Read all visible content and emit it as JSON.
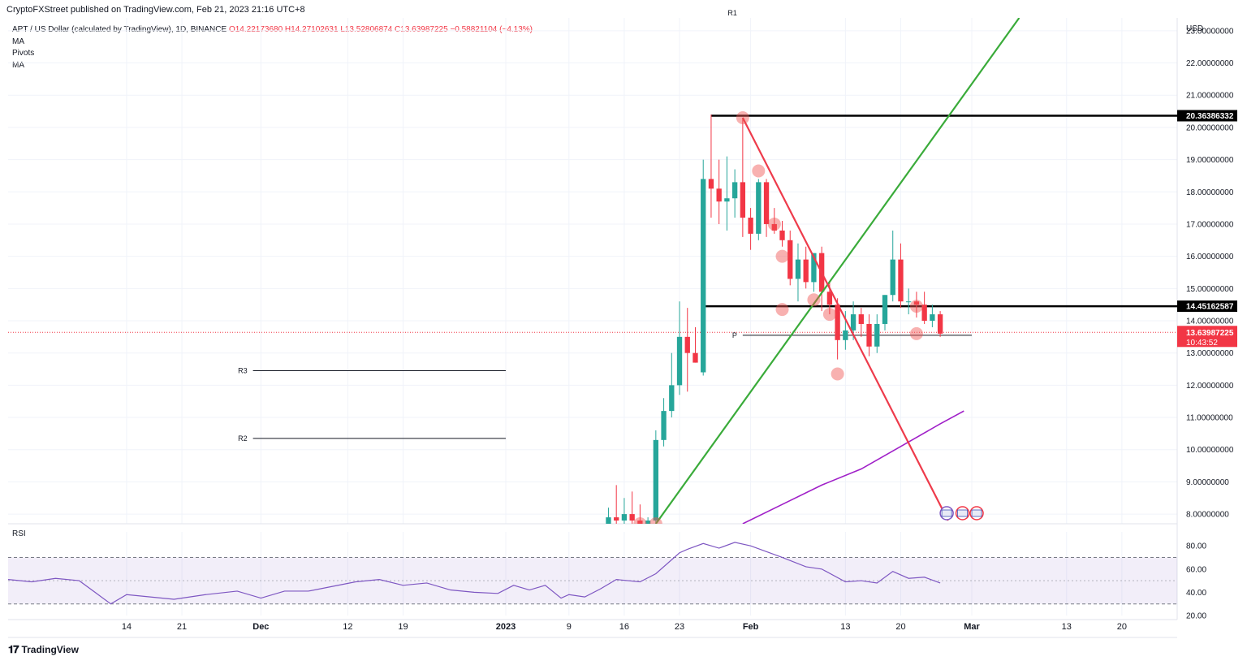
{
  "header": {
    "published": "CryptoFXStreet published on TradingView.com, Feb 21, 2023 21:16 UTC+8"
  },
  "legend": {
    "symbol": "APT / US Dollar (calculated by TradingView), 1D, BINANCE",
    "ohlc": "O14.22173680  H14.27102631  L13.52806874  C13.63987225  −0.58821104 (−4.13%)",
    "indicators": [
      "MA",
      "Pivots",
      "MA"
    ]
  },
  "footer": {
    "brand": "TradingView",
    "logo": "tradingview-logo-icon"
  },
  "colors": {
    "up": "#26a69a",
    "down": "#f23645",
    "trend_up": "#3aab3a",
    "trend_down": "#ee3b4b",
    "ma": "#a020c8",
    "rsi": "#7e57c2"
  },
  "chart_data": [
    {
      "type": "candlestick",
      "price_axis_title": "USD",
      "y_ticks": [
        8,
        9,
        10,
        11,
        12,
        13,
        14,
        15,
        16,
        17,
        18,
        19,
        20,
        21,
        22,
        23
      ],
      "y_tick_labels": [
        "8.00000000",
        "9.00000000",
        "10.00000000",
        "11.00000000",
        "12.00000000",
        "13.00000000",
        "14.00000000",
        "15.00000000",
        "16.00000000",
        "17.00000000",
        "18.00000000",
        "19.00000000",
        "20.00000000",
        "21.00000000",
        "22.00000000",
        "23.00000000"
      ],
      "ylim": [
        7.7,
        23.4
      ],
      "xlim": [
        "2022-10-30",
        "2023-03-27"
      ],
      "x_ticks": [
        "2022-11-14",
        "2022-11-21",
        "2022-12-01",
        "2022-12-12",
        "2022-12-19",
        "2023-01-01",
        "2023-01-09",
        "2023-01-16",
        "2023-01-23",
        "2023-02-01",
        "2023-02-13",
        "2023-02-20",
        "2023-03-01",
        "2023-03-13",
        "2023-03-20"
      ],
      "x_tick_labels": [
        "14",
        "21",
        "Dec",
        "12",
        "19",
        "2023",
        "9",
        "16",
        "23",
        "Feb",
        "13",
        "20",
        "Mar",
        "13",
        "20"
      ],
      "candles": [
        {
          "t": "2023-01-14",
          "o": 7.6,
          "h": 8.2,
          "l": 7.5,
          "c": 7.9
        },
        {
          "t": "2023-01-15",
          "o": 7.9,
          "h": 8.9,
          "l": 7.7,
          "c": 7.8
        },
        {
          "t": "2023-01-16",
          "o": 7.8,
          "h": 8.5,
          "l": 7.7,
          "c": 8.0
        },
        {
          "t": "2023-01-17",
          "o": 8.0,
          "h": 8.7,
          "l": 7.6,
          "c": 7.8
        },
        {
          "t": "2023-01-18",
          "o": 7.8,
          "h": 8.3,
          "l": 7.6,
          "c": 7.7
        },
        {
          "t": "2023-01-19",
          "o": 7.7,
          "h": 7.9,
          "l": 7.6,
          "c": 7.8
        },
        {
          "t": "2023-01-20",
          "o": 7.8,
          "h": 10.6,
          "l": 7.7,
          "c": 10.3
        },
        {
          "t": "2023-01-21",
          "o": 10.3,
          "h": 11.6,
          "l": 10.1,
          "c": 11.2
        },
        {
          "t": "2023-01-22",
          "o": 11.2,
          "h": 13.0,
          "l": 11.0,
          "c": 12.0
        },
        {
          "t": "2023-01-23",
          "o": 12.0,
          "h": 14.6,
          "l": 11.7,
          "c": 13.5
        },
        {
          "t": "2023-01-24",
          "o": 13.5,
          "h": 14.4,
          "l": 11.8,
          "c": 13.0
        },
        {
          "t": "2023-01-25",
          "o": 13.0,
          "h": 13.8,
          "l": 12.7,
          "c": 12.7
        },
        {
          "t": "2023-01-26",
          "o": 12.4,
          "h": 19.0,
          "l": 12.3,
          "c": 18.4
        },
        {
          "t": "2023-01-27",
          "o": 18.4,
          "h": 20.4,
          "l": 17.2,
          "c": 18.1
        },
        {
          "t": "2023-01-28",
          "o": 18.1,
          "h": 19.0,
          "l": 17.0,
          "c": 17.7
        },
        {
          "t": "2023-01-29",
          "o": 17.7,
          "h": 19.1,
          "l": 16.8,
          "c": 17.8
        },
        {
          "t": "2023-01-30",
          "o": 17.8,
          "h": 18.7,
          "l": 17.2,
          "c": 18.3
        },
        {
          "t": "2023-01-31",
          "o": 18.3,
          "h": 20.3,
          "l": 16.6,
          "c": 17.2
        },
        {
          "t": "2023-02-01",
          "o": 17.2,
          "h": 17.5,
          "l": 16.2,
          "c": 16.7
        },
        {
          "t": "2023-02-02",
          "o": 16.7,
          "h": 18.4,
          "l": 16.5,
          "c": 18.3
        },
        {
          "t": "2023-02-03",
          "o": 18.3,
          "h": 18.4,
          "l": 16.6,
          "c": 17.0
        },
        {
          "t": "2023-02-04",
          "o": 17.0,
          "h": 17.5,
          "l": 16.7,
          "c": 16.8
        },
        {
          "t": "2023-02-05",
          "o": 16.8,
          "h": 17.1,
          "l": 16.3,
          "c": 16.5
        },
        {
          "t": "2023-02-06",
          "o": 16.5,
          "h": 16.8,
          "l": 15.1,
          "c": 15.3
        },
        {
          "t": "2023-02-07",
          "o": 15.3,
          "h": 16.4,
          "l": 14.6,
          "c": 15.9
        },
        {
          "t": "2023-02-08",
          "o": 15.9,
          "h": 16.3,
          "l": 15.0,
          "c": 15.2
        },
        {
          "t": "2023-02-09",
          "o": 15.2,
          "h": 16.1,
          "l": 14.9,
          "c": 16.1
        },
        {
          "t": "2023-02-10",
          "o": 16.1,
          "h": 16.3,
          "l": 14.3,
          "c": 14.9
        },
        {
          "t": "2023-02-11",
          "o": 14.9,
          "h": 15.2,
          "l": 14.2,
          "c": 14.5
        },
        {
          "t": "2023-02-12",
          "o": 14.5,
          "h": 14.7,
          "l": 12.8,
          "c": 13.4
        },
        {
          "t": "2023-02-13",
          "o": 13.4,
          "h": 14.3,
          "l": 13.1,
          "c": 13.7
        },
        {
          "t": "2023-02-14",
          "o": 13.7,
          "h": 14.6,
          "l": 13.4,
          "c": 14.2
        },
        {
          "t": "2023-02-15",
          "o": 14.2,
          "h": 14.4,
          "l": 13.5,
          "c": 13.9
        },
        {
          "t": "2023-02-16",
          "o": 13.9,
          "h": 14.2,
          "l": 12.9,
          "c": 13.2
        },
        {
          "t": "2023-02-17",
          "o": 13.2,
          "h": 14.2,
          "l": 13.0,
          "c": 13.9
        },
        {
          "t": "2023-02-18",
          "o": 13.9,
          "h": 14.8,
          "l": 13.7,
          "c": 14.8
        },
        {
          "t": "2023-02-19",
          "o": 14.8,
          "h": 16.8,
          "l": 14.6,
          "c": 15.9
        },
        {
          "t": "2023-02-20",
          "o": 15.9,
          "h": 16.4,
          "l": 14.4,
          "c": 14.6
        },
        {
          "t": "2023-02-21",
          "o": 14.6,
          "h": 15.0,
          "l": 14.2,
          "c": 14.6
        },
        {
          "t": "2023-02-22",
          "o": 14.6,
          "h": 14.9,
          "l": 14.1,
          "c": 14.5
        },
        {
          "t": "2023-02-23",
          "o": 14.5,
          "h": 14.9,
          "l": 13.9,
          "c": 14.0
        },
        {
          "t": "2023-02-24",
          "o": 14.0,
          "h": 14.5,
          "l": 13.8,
          "c": 14.2
        },
        {
          "t": "2023-02-25",
          "o": 14.2,
          "h": 14.3,
          "l": 13.5,
          "c": 13.6
        }
      ],
      "horizontal_levels": [
        {
          "label": "20.36386332",
          "value": 20.36386332
        },
        {
          "label": "14.45162587",
          "value": 14.45162587
        }
      ],
      "current_price": {
        "label": "13.63987225",
        "value": 13.63987225,
        "countdown": "10:43:52"
      },
      "pivots": [
        {
          "label": "R1",
          "value": 23.55,
          "from": "2023-01-31",
          "to": "2023-03-01"
        },
        {
          "label": "R3",
          "value": 12.45,
          "from": "2022-11-30",
          "to": "2023-01-01"
        },
        {
          "label": "R2",
          "value": 10.35,
          "from": "2022-11-30",
          "to": "2023-01-01"
        },
        {
          "label": "P",
          "value": 13.55,
          "from": "2023-01-31",
          "to": "2023-03-01"
        }
      ],
      "trend_up": [
        {
          "t": "2023-01-20",
          "v": 7.7
        },
        {
          "t": "2023-03-07",
          "v": 23.4
        }
      ],
      "trend_down": [
        {
          "t": "2023-01-31",
          "v": 20.3
        },
        {
          "t": "2023-02-26",
          "v": 7.8
        }
      ],
      "moving_average": [
        {
          "t": "2023-01-31",
          "v": 7.7
        },
        {
          "t": "2023-02-05",
          "v": 8.3
        },
        {
          "t": "2023-02-10",
          "v": 8.9
        },
        {
          "t": "2023-02-15",
          "v": 9.4
        },
        {
          "t": "2023-02-20",
          "v": 10.1
        },
        {
          "t": "2023-02-25",
          "v": 10.8
        },
        {
          "t": "2023-02-28",
          "v": 11.2
        }
      ],
      "markers": [
        {
          "t": "2023-01-31",
          "v": 20.3
        },
        {
          "t": "2023-02-02",
          "v": 18.65
        },
        {
          "t": "2023-02-04",
          "v": 17.0
        },
        {
          "t": "2023-02-05",
          "v": 16.0
        },
        {
          "t": "2023-02-05",
          "v": 14.35
        },
        {
          "t": "2023-02-09",
          "v": 14.65
        },
        {
          "t": "2023-02-11",
          "v": 14.2
        },
        {
          "t": "2023-02-12",
          "v": 12.35
        },
        {
          "t": "2023-02-22",
          "v": 14.45
        },
        {
          "t": "2023-02-22",
          "v": 13.6
        },
        {
          "t": "2023-01-20",
          "v": 7.7
        },
        {
          "t": "2023-01-18",
          "v": 7.7
        }
      ],
      "event_icons": [
        "us-flag-icon",
        "us-flag-icon",
        "earnings-icon"
      ]
    },
    {
      "type": "line",
      "title": "RSI",
      "y_ticks": [
        20,
        40,
        60,
        80
      ],
      "y_tick_labels": [
        "20.00",
        "40.00",
        "60.00",
        "80.00"
      ],
      "ylim": [
        20,
        92
      ],
      "band": [
        30,
        70
      ],
      "midline": 50,
      "series": [
        {
          "t": "2022-10-30",
          "v": 51
        },
        {
          "t": "2022-11-02",
          "v": 49
        },
        {
          "t": "2022-11-05",
          "v": 52
        },
        {
          "t": "2022-11-08",
          "v": 50
        },
        {
          "t": "2022-11-10",
          "v": 40
        },
        {
          "t": "2022-11-12",
          "v": 30
        },
        {
          "t": "2022-11-14",
          "v": 38
        },
        {
          "t": "2022-11-17",
          "v": 36
        },
        {
          "t": "2022-11-20",
          "v": 34
        },
        {
          "t": "2022-11-24",
          "v": 38
        },
        {
          "t": "2022-11-28",
          "v": 41
        },
        {
          "t": "2022-12-01",
          "v": 35
        },
        {
          "t": "2022-12-04",
          "v": 41
        },
        {
          "t": "2022-12-07",
          "v": 41
        },
        {
          "t": "2022-12-10",
          "v": 45
        },
        {
          "t": "2022-12-13",
          "v": 49
        },
        {
          "t": "2022-12-16",
          "v": 51
        },
        {
          "t": "2022-12-19",
          "v": 46
        },
        {
          "t": "2022-12-22",
          "v": 48
        },
        {
          "t": "2022-12-25",
          "v": 42
        },
        {
          "t": "2022-12-28",
          "v": 40
        },
        {
          "t": "2022-12-31",
          "v": 39
        },
        {
          "t": "2023-01-02",
          "v": 46
        },
        {
          "t": "2023-01-04",
          "v": 42
        },
        {
          "t": "2023-01-06",
          "v": 46
        },
        {
          "t": "2023-01-08",
          "v": 35
        },
        {
          "t": "2023-01-09",
          "v": 38
        },
        {
          "t": "2023-01-11",
          "v": 36
        },
        {
          "t": "2023-01-13",
          "v": 43
        },
        {
          "t": "2023-01-15",
          "v": 51
        },
        {
          "t": "2023-01-18",
          "v": 49
        },
        {
          "t": "2023-01-20",
          "v": 56
        },
        {
          "t": "2023-01-23",
          "v": 74
        },
        {
          "t": "2023-01-24",
          "v": 77
        },
        {
          "t": "2023-01-26",
          "v": 82
        },
        {
          "t": "2023-01-28",
          "v": 78
        },
        {
          "t": "2023-01-30",
          "v": 83
        },
        {
          "t": "2023-02-01",
          "v": 80
        },
        {
          "t": "2023-02-03",
          "v": 75
        },
        {
          "t": "2023-02-05",
          "v": 70
        },
        {
          "t": "2023-02-08",
          "v": 62
        },
        {
          "t": "2023-02-10",
          "v": 60
        },
        {
          "t": "2023-02-13",
          "v": 49
        },
        {
          "t": "2023-02-15",
          "v": 50
        },
        {
          "t": "2023-02-17",
          "v": 48
        },
        {
          "t": "2023-02-19",
          "v": 58
        },
        {
          "t": "2023-02-21",
          "v": 52
        },
        {
          "t": "2023-02-23",
          "v": 53
        },
        {
          "t": "2023-02-25",
          "v": 48
        }
      ]
    }
  ]
}
